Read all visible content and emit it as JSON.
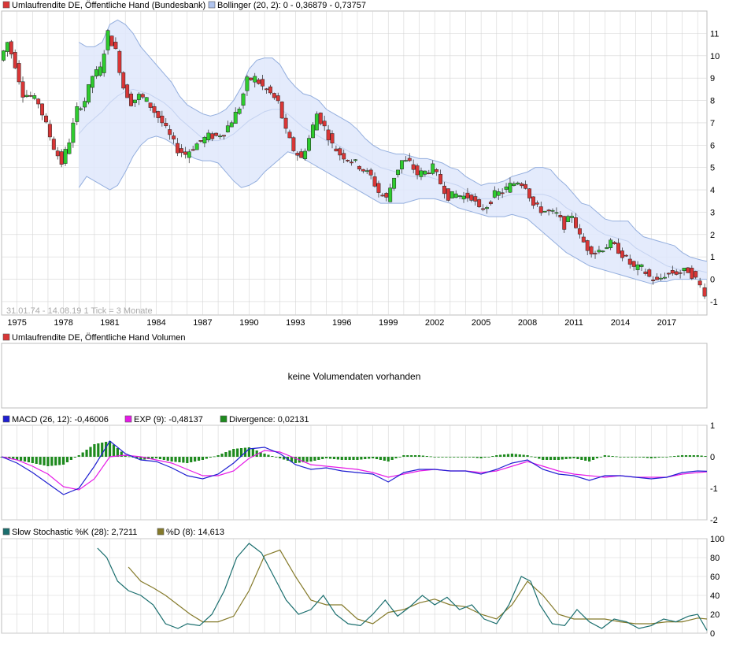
{
  "colors": {
    "up": "#2ecc2e",
    "down": "#d93636",
    "band_fill": "#dfe8fb",
    "band_line": "#93aede",
    "macd": "#1f1fd1",
    "signal": "#e619e6",
    "divergence": "#1e8a1e",
    "k": "#1a6e6e",
    "d": "#857a2a",
    "grid": "#d5d5d5"
  },
  "chart_data": [
    {
      "type": "candlestick",
      "title": "Umlaufrendite DE, Öffentliche Hand (Bundesbank)",
      "legend": [
        {
          "name": "Umlaufrendite DE, Öffentliche Hand (Bundesbank)",
          "color": "#d93636"
        },
        {
          "name": "Bollinger (20, 2): 0 - 0,36879 - 0,73757",
          "color": "#b0c4ee"
        }
      ],
      "watermark": "31.01.74 - 14.08.19    1 Tick = 3 Monate",
      "x_tick_labels": [
        "1975",
        "1978",
        "1981",
        "1984",
        "1987",
        "1990",
        "1993",
        "1996",
        "1999",
        "2002",
        "2005",
        "2008",
        "2011",
        "2014",
        "2017"
      ],
      "y_tick_labels": [
        "11",
        "10",
        "9",
        "8",
        "7",
        "6",
        "5",
        "4",
        "3",
        "2",
        "1",
        "0",
        "-1"
      ],
      "ylim": [
        -1.6,
        12.0
      ],
      "series_year": [
        1974.0,
        1974.5,
        1975.0,
        1975.5,
        1976.0,
        1976.5,
        1977.0,
        1977.5,
        1978.0,
        1978.5,
        1979.0,
        1979.5,
        1980.0,
        1980.5,
        1981.0,
        1981.5,
        1982.0,
        1982.5,
        1983.0,
        1983.5,
        1984.0,
        1984.5,
        1985.0,
        1985.5,
        1986.0,
        1986.5,
        1987.0,
        1987.5,
        1988.0,
        1988.5,
        1989.0,
        1989.5,
        1990.0,
        1990.5,
        1991.0,
        1991.5,
        1992.0,
        1992.5,
        1993.0,
        1993.5,
        1994.0,
        1994.5,
        1995.0,
        1995.5,
        1996.0,
        1996.5,
        1997.0,
        1997.5,
        1998.0,
        1998.5,
        1999.0,
        1999.5,
        2000.0,
        2000.5,
        2001.0,
        2001.5,
        2002.0,
        2002.5,
        2003.0,
        2003.5,
        2004.0,
        2004.5,
        2005.0,
        2005.5,
        2006.0,
        2006.5,
        2007.0,
        2007.5,
        2008.0,
        2008.5,
        2009.0,
        2009.5,
        2010.0,
        2010.5,
        2011.0,
        2011.5,
        2012.0,
        2012.5,
        2013.0,
        2013.5,
        2014.0,
        2014.5,
        2015.0,
        2015.5,
        2016.0,
        2016.5,
        2017.0,
        2017.5,
        2018.0,
        2018.5,
        2019.0,
        2019.6
      ],
      "series_value": [
        9.8,
        10.6,
        9.6,
        8.3,
        8.2,
        7.9,
        6.9,
        5.9,
        5.2,
        6.2,
        7.6,
        8.0,
        9.1,
        9.4,
        11.0,
        10.2,
        8.6,
        7.9,
        8.2,
        8.0,
        7.5,
        7.0,
        6.4,
        5.8,
        5.6,
        5.9,
        6.2,
        6.4,
        6.4,
        6.6,
        7.1,
        7.7,
        8.9,
        9.0,
        8.6,
        8.3,
        7.9,
        6.6,
        5.8,
        5.4,
        6.3,
        7.4,
        6.8,
        6.0,
        5.6,
        5.4,
        5.2,
        4.9,
        4.6,
        3.9,
        3.6,
        4.6,
        5.3,
        5.2,
        4.7,
        4.8,
        5.0,
        4.3,
        3.7,
        3.8,
        3.7,
        3.7,
        3.1,
        3.3,
        3.8,
        3.9,
        4.2,
        4.4,
        4.2,
        3.3,
        3.1,
        3.0,
        2.9,
        2.4,
        2.9,
        1.9,
        1.4,
        1.2,
        1.4,
        1.6,
        1.3,
        0.9,
        0.5,
        0.5,
        0.1,
        -0.1,
        0.2,
        0.3,
        0.3,
        0.4,
        0.0,
        -0.6
      ],
      "band_upper": [
        null,
        null,
        null,
        null,
        null,
        null,
        null,
        null,
        null,
        null,
        10.6,
        10.4,
        10.4,
        10.6,
        11.4,
        11.6,
        11.4,
        11.0,
        10.4,
        10.0,
        9.6,
        9.2,
        8.8,
        8.2,
        7.8,
        7.6,
        7.4,
        7.3,
        7.4,
        7.6,
        8.0,
        8.6,
        9.4,
        9.8,
        9.9,
        9.9,
        9.6,
        9.0,
        8.6,
        8.3,
        8.2,
        8.0,
        7.6,
        7.4,
        7.2,
        7.0,
        6.7,
        6.3,
        6.0,
        5.8,
        5.7,
        5.6,
        5.6,
        5.5,
        5.4,
        5.4,
        5.3,
        5.2,
        5.0,
        4.9,
        4.6,
        4.4,
        4.2,
        4.3,
        4.3,
        4.4,
        4.6,
        4.7,
        4.8,
        5.0,
        5.0,
        4.9,
        4.5,
        4.2,
        3.8,
        3.4,
        3.3,
        3.0,
        2.7,
        2.6,
        2.6,
        2.6,
        2.2,
        1.9,
        1.8,
        1.7,
        1.6,
        1.5,
        1.2,
        1.0,
        0.9,
        0.8
      ],
      "band_mid": [
        null,
        null,
        null,
        null,
        null,
        null,
        null,
        null,
        null,
        null,
        6.5,
        6.9,
        7.2,
        7.5,
        7.9,
        8.2,
        8.4,
        8.5,
        8.4,
        8.3,
        8.1,
        7.9,
        7.6,
        7.2,
        6.9,
        6.6,
        6.3,
        6.2,
        6.2,
        6.3,
        6.5,
        6.8,
        7.1,
        7.3,
        7.5,
        7.6,
        7.6,
        7.4,
        7.1,
        6.8,
        6.6,
        6.4,
        6.2,
        6.1,
        5.9,
        5.7,
        5.6,
        5.4,
        5.2,
        5.0,
        4.9,
        4.8,
        4.7,
        4.6,
        4.6,
        4.6,
        4.5,
        4.4,
        4.3,
        4.2,
        4.0,
        3.8,
        3.6,
        3.6,
        3.6,
        3.7,
        3.8,
        3.8,
        3.8,
        3.8,
        3.8,
        3.7,
        3.5,
        3.2,
        3.0,
        2.7,
        2.5,
        2.2,
        2.0,
        1.9,
        1.8,
        1.7,
        1.4,
        1.2,
        1.0,
        0.8,
        0.6,
        0.5,
        0.4,
        0.4,
        0.4,
        0.3
      ],
      "band_lower": [
        null,
        null,
        null,
        null,
        null,
        null,
        null,
        null,
        null,
        null,
        4.1,
        4.6,
        4.4,
        4.2,
        4.0,
        4.2,
        4.8,
        5.5,
        6.0,
        6.3,
        6.4,
        6.3,
        6.1,
        5.8,
        5.6,
        5.4,
        5.3,
        5.3,
        5.2,
        4.8,
        4.4,
        4.1,
        4.2,
        4.4,
        4.8,
        5.1,
        5.4,
        5.7,
        5.6,
        5.4,
        5.2,
        5.0,
        4.8,
        4.6,
        4.4,
        4.2,
        4.0,
        3.8,
        3.6,
        3.4,
        3.4,
        3.4,
        3.4,
        3.5,
        3.6,
        3.6,
        3.6,
        3.5,
        3.4,
        3.2,
        3.1,
        3.0,
        2.9,
        2.8,
        2.8,
        2.8,
        2.9,
        2.8,
        2.7,
        2.4,
        2.1,
        1.8,
        1.5,
        1.2,
        1.0,
        0.8,
        0.6,
        0.5,
        0.4,
        0.3,
        0.2,
        0.1,
        0.0,
        -0.1,
        -0.2,
        -0.1,
        -0.1,
        0.0,
        0.0,
        0.0,
        0.0,
        0.0
      ]
    },
    {
      "type": "bar",
      "title": "Umlaufrendite DE, Öffentliche Hand Volumen",
      "legend": [
        {
          "name": "Umlaufrendite DE, Öffentliche Hand Volumen",
          "color": "#d93636"
        }
      ],
      "message": "keine Volumendaten vorhanden"
    },
    {
      "type": "line",
      "title": "MACD",
      "legend": [
        {
          "name": "MACD (26, 12): -0,46006",
          "color": "#1f1fd1"
        },
        {
          "name": "EXP (9): -0,48137",
          "color": "#e619e6"
        },
        {
          "name": "Divergence: 0,02131",
          "color": "#1e8a1e"
        }
      ],
      "y_tick_labels": [
        "1",
        "0",
        "-1",
        "-2"
      ],
      "ylim": [
        -2,
        1
      ],
      "x": [
        1974.0,
        1975.0,
        1976.0,
        1977.0,
        1978.0,
        1979.0,
        1980.0,
        1981.0,
        1982.0,
        1983.0,
        1984.0,
        1985.0,
        1986.0,
        1987.0,
        1988.0,
        1989.0,
        1990.0,
        1991.0,
        1992.0,
        1993.0,
        1994.0,
        1995.0,
        1996.0,
        1997.0,
        1998.0,
        1999.0,
        2000.0,
        2001.0,
        2002.0,
        2003.0,
        2004.0,
        2005.0,
        2006.0,
        2007.0,
        2008.0,
        2009.0,
        2010.0,
        2011.0,
        2012.0,
        2013.0,
        2014.0,
        2015.0,
        2016.0,
        2017.0,
        2018.0,
        2019.0,
        2019.6
      ],
      "macd": [
        0.0,
        -0.2,
        -0.5,
        -0.85,
        -1.2,
        -1.0,
        -0.3,
        0.5,
        0.1,
        -0.1,
        -0.15,
        -0.35,
        -0.6,
        -0.7,
        -0.55,
        -0.2,
        0.25,
        0.3,
        0.1,
        -0.25,
        -0.4,
        -0.35,
        -0.45,
        -0.5,
        -0.55,
        -0.8,
        -0.5,
        -0.4,
        -0.4,
        -0.45,
        -0.45,
        -0.55,
        -0.4,
        -0.2,
        -0.1,
        -0.4,
        -0.55,
        -0.6,
        -0.75,
        -0.6,
        -0.6,
        -0.65,
        -0.7,
        -0.65,
        -0.5,
        -0.45,
        -0.46
      ],
      "signal": [
        0.0,
        -0.1,
        -0.3,
        -0.55,
        -0.95,
        -1.05,
        -0.7,
        0.0,
        0.05,
        0.0,
        -0.1,
        -0.2,
        -0.4,
        -0.6,
        -0.6,
        -0.45,
        -0.05,
        0.2,
        0.15,
        -0.05,
        -0.25,
        -0.3,
        -0.35,
        -0.4,
        -0.5,
        -0.65,
        -0.55,
        -0.45,
        -0.4,
        -0.45,
        -0.45,
        -0.5,
        -0.45,
        -0.3,
        -0.15,
        -0.3,
        -0.45,
        -0.55,
        -0.6,
        -0.65,
        -0.6,
        -0.65,
        -0.65,
        -0.65,
        -0.55,
        -0.5,
        -0.48
      ],
      "divergence": [
        0.0,
        -0.1,
        -0.2,
        -0.3,
        -0.25,
        0.05,
        0.4,
        0.5,
        0.05,
        -0.1,
        -0.05,
        -0.15,
        -0.2,
        -0.1,
        0.05,
        0.25,
        0.3,
        0.1,
        -0.05,
        -0.2,
        -0.15,
        -0.05,
        -0.1,
        -0.1,
        -0.05,
        -0.15,
        0.05,
        0.05,
        0.0,
        0.0,
        0.0,
        -0.05,
        0.05,
        0.1,
        0.05,
        -0.1,
        -0.1,
        -0.05,
        -0.15,
        0.05,
        0.0,
        0.0,
        -0.05,
        0.0,
        0.05,
        0.05,
        0.02
      ]
    },
    {
      "type": "line",
      "title": "Slow Stochastic",
      "legend": [
        {
          "name": "Slow Stochastic %K (28): 2,7211",
          "color": "#1a6e6e"
        },
        {
          "name": "%D (8): 14,613",
          "color": "#857a2a"
        }
      ],
      "y_tick_labels": [
        "100",
        "80",
        "60",
        "40",
        "20",
        "0"
      ],
      "ylim": [
        0,
        100
      ],
      "k_x": [
        1980.2,
        1980.8,
        1981.5,
        1982.2,
        1983.0,
        1983.8,
        1984.6,
        1985.4,
        1986.0,
        1986.8,
        1987.6,
        1988.4,
        1989.2,
        1990.0,
        1990.8,
        1991.6,
        1992.4,
        1993.2,
        1994.0,
        1994.8,
        1995.6,
        1996.4,
        1997.2,
        1998.0,
        1998.8,
        1999.6,
        2000.4,
        2001.2,
        2002.0,
        2002.8,
        2003.6,
        2004.4,
        2005.2,
        2006.0,
        2006.8,
        2007.6,
        2008.2,
        2008.8,
        2009.6,
        2010.4,
        2011.2,
        2012.0,
        2012.8,
        2013.6,
        2014.4,
        2015.2,
        2016.0,
        2016.8,
        2017.6,
        2018.4,
        2019.0,
        2019.6
      ],
      "k": [
        90,
        80,
        55,
        45,
        40,
        30,
        10,
        5,
        10,
        8,
        20,
        45,
        80,
        95,
        85,
        60,
        35,
        20,
        25,
        40,
        20,
        10,
        8,
        20,
        35,
        18,
        28,
        40,
        30,
        38,
        25,
        30,
        15,
        10,
        30,
        60,
        55,
        30,
        10,
        8,
        25,
        12,
        5,
        15,
        12,
        5,
        8,
        15,
        12,
        18,
        20,
        3
      ],
      "d_x": [
        1982.2,
        1983.0,
        1983.8,
        1984.6,
        1985.4,
        1986.2,
        1987.0,
        1988.0,
        1989.0,
        1990.0,
        1991.0,
        1992.0,
        1993.0,
        1994.0,
        1995.0,
        1996.0,
        1997.0,
        1998.0,
        1999.0,
        2000.0,
        2001.0,
        2002.0,
        2003.0,
        2004.0,
        2005.0,
        2006.0,
        2007.0,
        2008.0,
        2009.0,
        2010.0,
        2011.0,
        2012.0,
        2013.0,
        2014.0,
        2015.0,
        2016.0,
        2017.0,
        2018.0,
        2019.0,
        2019.6
      ],
      "d": [
        70,
        55,
        48,
        40,
        30,
        20,
        12,
        12,
        18,
        45,
        82,
        88,
        60,
        35,
        30,
        30,
        15,
        10,
        22,
        25,
        32,
        36,
        30,
        28,
        20,
        15,
        30,
        55,
        40,
        20,
        15,
        15,
        15,
        12,
        10,
        10,
        12,
        12,
        16,
        15
      ]
    }
  ]
}
